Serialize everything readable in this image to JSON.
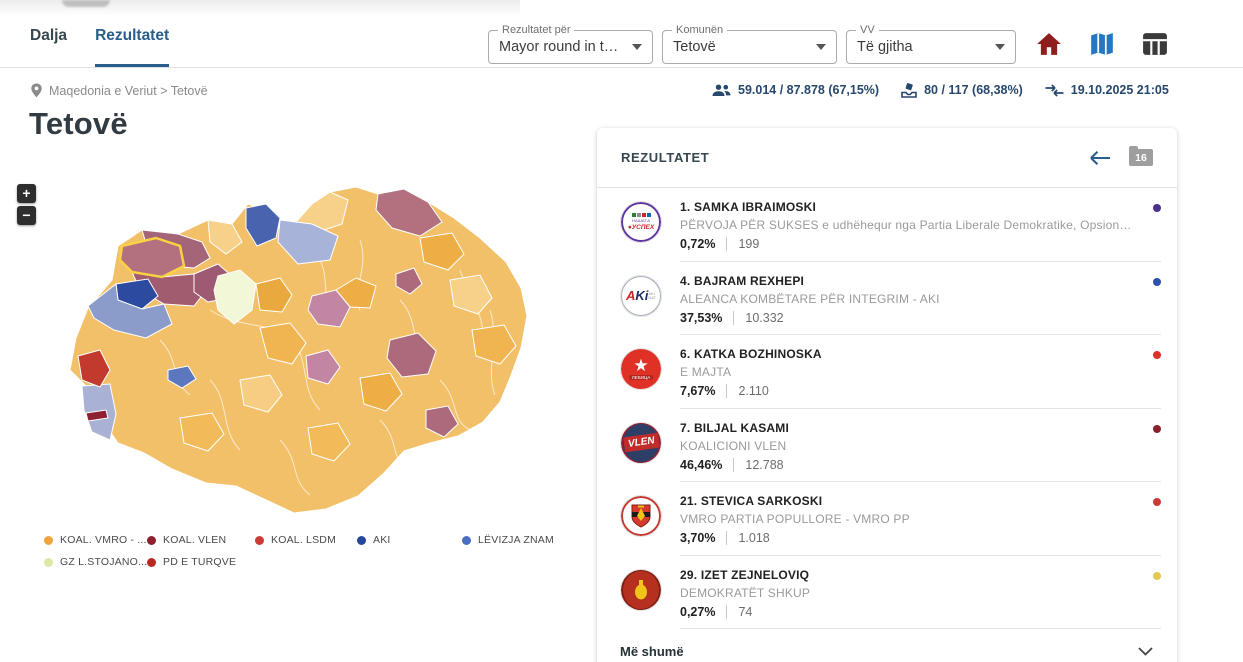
{
  "header": {
    "tabs": [
      {
        "label": "Dalja",
        "active": false
      },
      {
        "label": "Rezultatet",
        "active": true
      }
    ],
    "filters": [
      {
        "label": "Rezultatet për",
        "value": "Mayor round in the ..."
      },
      {
        "label": "Komunën",
        "value": "Tetovë"
      },
      {
        "label": "VV",
        "value": "Të gjitha"
      }
    ],
    "icons": [
      "home-icon",
      "map-icon",
      "table-icon"
    ]
  },
  "breadcrumb": {
    "path": "Maqedonia e Veriut > Tetovë"
  },
  "stats": {
    "turnout": "59.014 / 87.878 (67,15%)",
    "polling_stations": "80 / 117 (68,38%)",
    "updated": "19.10.2025 21:05"
  },
  "page_title": "Tetovë",
  "map": {
    "zoom_in": "+",
    "zoom_out": "−",
    "selected_region": "Tetovë",
    "highlight_color": "#f7d243",
    "legend": [
      {
        "label": "KOAL. VMRO - ...",
        "color": "#efa43e"
      },
      {
        "label": "KOAL. VLEN",
        "color": "#8e1f2f"
      },
      {
        "label": "KOAL. LSDM",
        "color": "#cc3b33"
      },
      {
        "label": "AKI",
        "color": "#27479e"
      },
      {
        "label": "LËVIZJA ZNAM",
        "color": "#4a6fc0"
      },
      {
        "label": "GZ L.STOJANO...",
        "color": "#dce9a5"
      },
      {
        "label": "PD E TURQVE",
        "color": "#bb2a20"
      }
    ]
  },
  "results_panel": {
    "title": "REZULTATET",
    "badge_count": "16",
    "more_label": "Më shumë",
    "candidates": [
      {
        "name": "1. SAMKA IBRAIMOSKI",
        "party": "PËRVOJA PËR SUKSES e udhëhequr nga Partia Liberale Demokratike, Opsioni Qyte…",
        "percent": "0,72%",
        "votes": "199",
        "dot_color": "#4a2f8f"
      },
      {
        "name": "4. BAJRAM REXHEPI",
        "party": "ALEANCA KOMBËTARE PËR INTEGRIM - AKI",
        "percent": "37,53%",
        "votes": "10.332",
        "dot_color": "#2a52b0"
      },
      {
        "name": "6. KATKA BOZHINOSKA",
        "party": "E MAJTA",
        "percent": "7,67%",
        "votes": "2.110",
        "dot_color": "#e03127"
      },
      {
        "name": "7. BILJAL KASAMI",
        "party": "KOALICIONI VLEN",
        "percent": "46,46%",
        "votes": "12.788",
        "dot_color": "#8e1f2f"
      },
      {
        "name": "21. STEVICA SARKOSKI",
        "party": "VMRO PARTIA POPULLORE - VMRO PP",
        "percent": "3,70%",
        "votes": "1.018",
        "dot_color": "#cc3b33"
      },
      {
        "name": "29. IZET ZEJNELOVIQ",
        "party": "DEMOKRATËT SHKUP",
        "percent": "0,27%",
        "votes": "74",
        "dot_color": "#e3c94f"
      }
    ]
  }
}
